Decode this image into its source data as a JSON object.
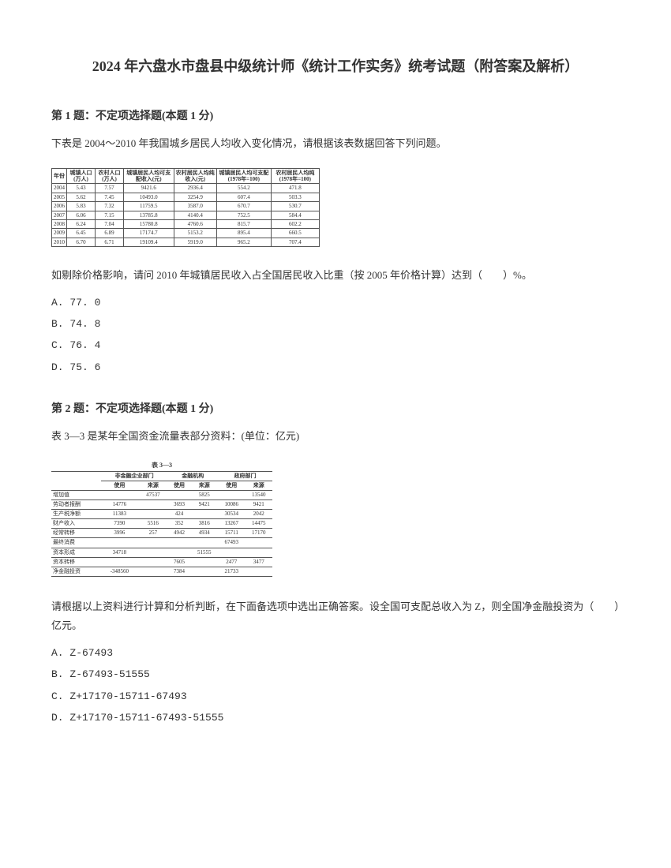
{
  "title": "2024 年六盘水市盘县中级统计师《统计工作实务》统考试题（附答案及解析）",
  "q1": {
    "header": "第 1 题：不定项选择题(本题 1 分)",
    "text": "下表是 2004～2010 年我国城乡居民人均收入变化情况，请根据该表数据回答下列问题。",
    "followText": "如剔除价格影响，请问 2010 年城镇居民收入占全国居民收入比重（按 2005 年价格计算）达到（　　）%。",
    "options": {
      "a": "A. 77. 0",
      "b": "B. 74. 8",
      "c": "C. 76. 4",
      "d": "D. 75. 6"
    },
    "table": {
      "headers": [
        "年份",
        "城镇人口(万人)",
        "农村人口(万人)",
        "城镇居民人均可支配收入(元)",
        "农村居民人均纯收入(元)",
        "城镇居民人均可支配(1978年=100)",
        "农村居民人均纯(1978年=100)"
      ],
      "rows": [
        [
          "2004",
          "5.43",
          "7.57",
          "9421.6",
          "2936.4",
          "554.2",
          "471.8"
        ],
        [
          "2005",
          "5.62",
          "7.45",
          "10493.0",
          "3254.9",
          "607.4",
          "503.3"
        ],
        [
          "2006",
          "5.83",
          "7.32",
          "11759.5",
          "3587.0",
          "670.7",
          "530.7"
        ],
        [
          "2007",
          "6.06",
          "7.15",
          "13785.8",
          "4140.4",
          "752.5",
          "584.4"
        ],
        [
          "2008",
          "6.24",
          "7.04",
          "15780.8",
          "4760.6",
          "815.7",
          "602.2"
        ],
        [
          "2009",
          "6.45",
          "6.89",
          "17174.7",
          "5153.2",
          "895.4",
          "660.5"
        ],
        [
          "2010",
          "6.70",
          "6.71",
          "19109.4",
          "5919.0",
          "965.2",
          "707.4"
        ]
      ]
    }
  },
  "q2": {
    "header": "第 2 题：不定项选择题(本题 1 分)",
    "text": "表 3—3 是某年全国资金流量表部分资料：(单位：亿元)",
    "followText": "请根据以上资料进行计算和分析判断，在下面备选项中选出正确答案。设全国可支配总收入为 Z，则全国净金融投资为（　　）亿元。",
    "options": {
      "a": "A. Z-67493",
      "b": "B. Z-67493-51555",
      "c": "C. Z+17170-15711-67493",
      "d": "D. Z+17170-15711-67493-51555"
    },
    "table": {
      "caption": "表 3—3",
      "sectionHeaders": [
        "非金融企业部门",
        "金融机构",
        "政府部门"
      ],
      "subHeaders": [
        "使用",
        "来源",
        "使用",
        "来源",
        "使用",
        "来源"
      ],
      "rows": [
        [
          "增加值",
          "",
          "47537",
          "",
          "5825",
          "",
          "13540"
        ],
        [
          "劳动者报酬",
          "14776",
          "",
          "3693",
          "9421",
          "10086",
          "9421"
        ],
        [
          "生产税净额",
          "11383",
          "",
          "424",
          "",
          "30534",
          "2042"
        ],
        [
          "财产收入",
          "7390",
          "5516",
          "352",
          "3816",
          "13267",
          "14475"
        ],
        [
          "经常转移",
          "3996",
          "257",
          "4942",
          "4934",
          "15711",
          "17170"
        ],
        [
          "最终消费",
          "",
          "",
          "",
          "",
          "67493",
          ""
        ],
        [
          "资本形成",
          "34718",
          "",
          "",
          "51555",
          "",
          ""
        ],
        [
          "资本转移",
          "",
          "",
          "7605",
          "",
          "2477",
          "3477"
        ],
        [
          "净金融投资",
          "-348560",
          "",
          "7384",
          "",
          "21733",
          ""
        ]
      ]
    }
  }
}
